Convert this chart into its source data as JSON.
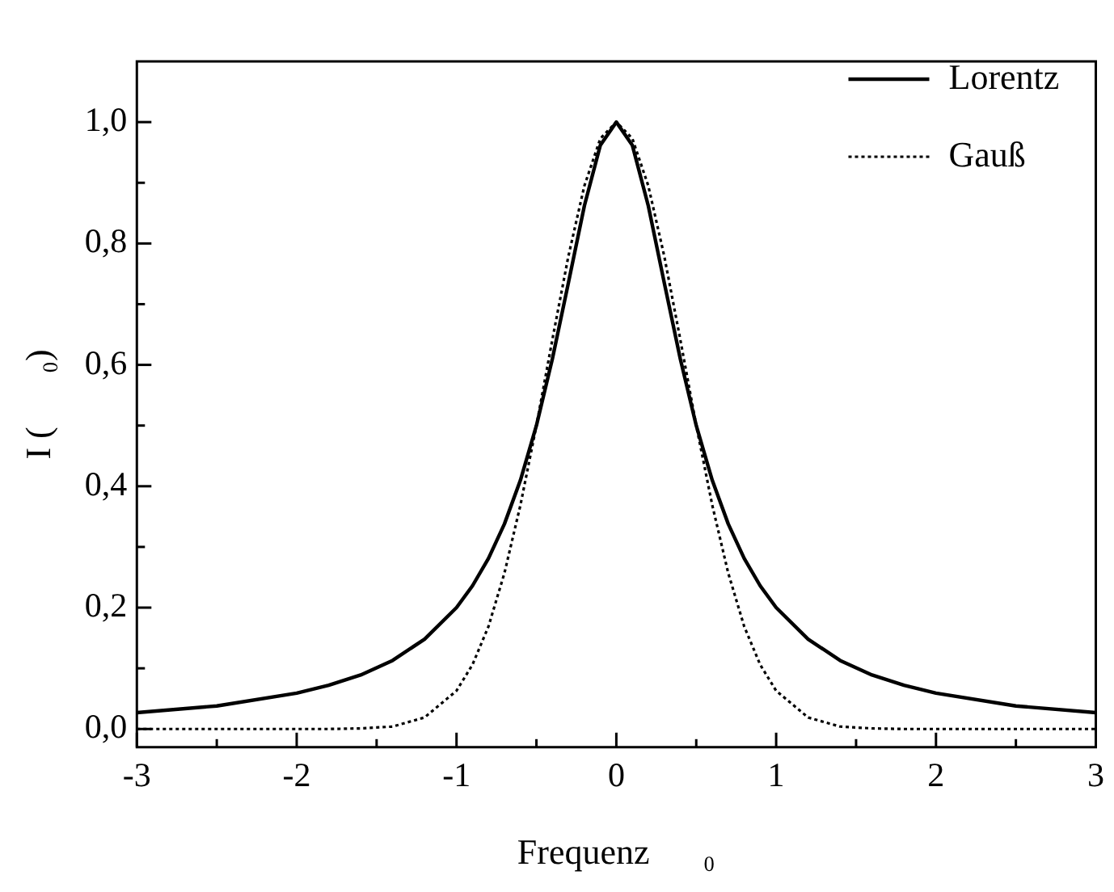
{
  "chart_data": {
    "type": "line",
    "xlabel": "Frequenz      ₀",
    "ylabel": "I (      ₀)",
    "legend": "top right",
    "grid": false,
    "marker": "none",
    "xlim": [
      -3,
      3
    ],
    "ylim": [
      -0.03,
      1.1
    ],
    "xticks": [
      {
        "value": -3,
        "label": "-3"
      },
      {
        "value": -2.5,
        "label": null
      },
      {
        "value": -2,
        "label": "-2"
      },
      {
        "value": -1.5,
        "label": null
      },
      {
        "value": -1,
        "label": "-1"
      },
      {
        "value": -0.5,
        "label": null
      },
      {
        "value": 0,
        "label": "0"
      },
      {
        "value": 0.5,
        "label": null
      },
      {
        "value": 1,
        "label": "1"
      },
      {
        "value": 1.5,
        "label": null
      },
      {
        "value": 2,
        "label": "2"
      },
      {
        "value": 2.5,
        "label": null
      },
      {
        "value": 3,
        "label": "3"
      }
    ],
    "yticks": [
      {
        "value": 0,
        "label": "0,0"
      },
      {
        "value": 0.1,
        "label": null
      },
      {
        "value": 0.2,
        "label": "0,2"
      },
      {
        "value": 0.3,
        "label": null
      },
      {
        "value": 0.4,
        "label": "0,4"
      },
      {
        "value": 0.5,
        "label": null
      },
      {
        "value": 0.6,
        "label": "0,6"
      },
      {
        "value": 0.7,
        "label": null
      },
      {
        "value": 0.8,
        "label": "0,8"
      },
      {
        "value": 0.9,
        "label": null
      },
      {
        "value": 1.0,
        "label": "1,0"
      }
    ],
    "series": [
      {
        "name": "Lorentz",
        "color": "#000000",
        "line_style": "solid",
        "x": [
          -3,
          -2.5,
          -2,
          -1.8,
          -1.6,
          -1.4,
          -1.2,
          -1,
          -0.9,
          -0.8,
          -0.7,
          -0.6,
          -0.5,
          -0.4,
          -0.3,
          -0.2,
          -0.1,
          0,
          0.1,
          0.2,
          0.3,
          0.4,
          0.5,
          0.6,
          0.7,
          0.8,
          0.9,
          1,
          1.2,
          1.4,
          1.6,
          1.8,
          2,
          2.5,
          3
        ],
        "values": [
          0.027,
          0.038,
          0.059,
          0.072,
          0.089,
          0.113,
          0.148,
          0.2,
          0.236,
          0.281,
          0.338,
          0.41,
          0.5,
          0.61,
          0.735,
          0.862,
          0.962,
          1,
          0.962,
          0.862,
          0.735,
          0.61,
          0.5,
          0.41,
          0.338,
          0.281,
          0.236,
          0.2,
          0.148,
          0.113,
          0.089,
          0.072,
          0.059,
          0.038,
          0.027
        ]
      },
      {
        "name": "Gauß",
        "color": "#000000",
        "line_style": "dotted",
        "x": [
          -3,
          -2.5,
          -2,
          -1.8,
          -1.6,
          -1.4,
          -1.2,
          -1,
          -0.9,
          -0.8,
          -0.7,
          -0.6,
          -0.5,
          -0.4,
          -0.3,
          -0.2,
          -0.1,
          0,
          0.1,
          0.2,
          0.3,
          0.4,
          0.5,
          0.6,
          0.7,
          0.8,
          0.9,
          1,
          1.2,
          1.4,
          1.6,
          1.8,
          2,
          2.5,
          3
        ],
        "values": [
          0,
          0,
          0,
          0,
          0.001,
          0.004,
          0.019,
          0.063,
          0.106,
          0.169,
          0.257,
          0.369,
          0.5,
          0.642,
          0.779,
          0.895,
          0.973,
          1,
          0.973,
          0.895,
          0.779,
          0.642,
          0.5,
          0.369,
          0.257,
          0.169,
          0.106,
          0.063,
          0.019,
          0.004,
          0.001,
          0,
          0,
          0,
          0
        ]
      }
    ]
  }
}
